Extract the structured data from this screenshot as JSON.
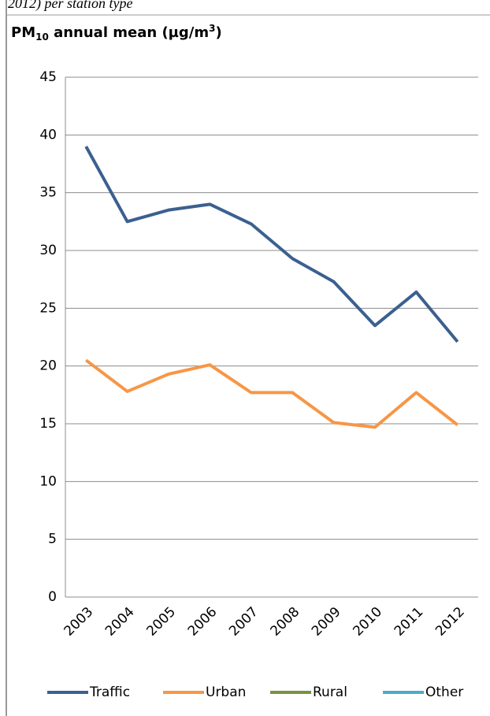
{
  "caption": "2012) per station type",
  "chart_data": {
    "type": "line",
    "title_parts": [
      "PM",
      "10",
      " annual mean (µg/m",
      "3",
      ")"
    ],
    "categories": [
      "2003",
      "2004",
      "2005",
      "2006",
      "2007",
      "2008",
      "2009",
      "2010",
      "2011",
      "2012"
    ],
    "series": [
      {
        "name": "Traffic",
        "color": "#3b6090",
        "values": [
          39,
          32.5,
          33.5,
          34,
          32.3,
          29.3,
          27.3,
          23.5,
          26.4,
          22.1
        ]
      },
      {
        "name": "Urban",
        "color": "#f79646",
        "values": [
          20.5,
          17.8,
          19.3,
          20.1,
          17.7,
          17.7,
          15.1,
          14.7,
          17.7,
          14.9
        ]
      },
      {
        "name": "Rural",
        "color": "#77933c",
        "values": [
          null,
          null,
          null,
          null,
          null,
          null,
          null,
          null,
          null,
          null
        ]
      },
      {
        "name": "Other",
        "color": "#4bacc6",
        "values": [
          null,
          null,
          null,
          null,
          null,
          null,
          null,
          null,
          null,
          null
        ]
      }
    ],
    "ylim": [
      0,
      45
    ],
    "yticks": [
      0,
      5,
      10,
      15,
      20,
      25,
      30,
      35,
      40,
      45
    ],
    "grid": true,
    "legend": "bottom"
  }
}
